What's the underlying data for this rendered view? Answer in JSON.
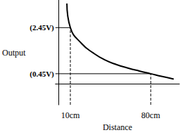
{
  "chart_data": {
    "type": "line",
    "x_label": "Distance",
    "y_label": "Output",
    "x": [
      7,
      10,
      20,
      30,
      40,
      50,
      60,
      70,
      80,
      90,
      100
    ],
    "values": [
      3.5,
      2.45,
      1.75,
      1.35,
      1.05,
      0.85,
      0.7,
      0.57,
      0.45,
      0.33,
      0.22
    ],
    "color": "#000000",
    "line_style": "solid",
    "xlim": [
      -3,
      105
    ],
    "ylim": [
      -0.9,
      3.65
    ],
    "xticks": [
      {
        "value": 10,
        "label": "10cm"
      },
      {
        "value": 80,
        "label": "80cm"
      }
    ],
    "yticks": [
      {
        "value": 2.45,
        "label": "(2.45V)"
      },
      {
        "value": 0.45,
        "label": "(0.45V)"
      }
    ],
    "grid": false
  }
}
